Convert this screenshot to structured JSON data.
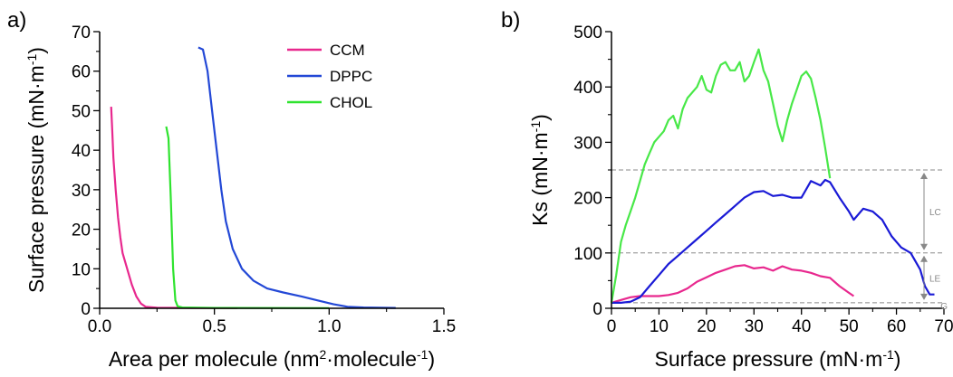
{
  "chart_data": [
    {
      "panel_label": "a)",
      "type": "line",
      "xlabel_html": [
        "Area per molecule (nm",
        "2",
        "·molecule",
        "-1",
        ")"
      ],
      "ylabel_html": [
        "Surface pressure (mN·m",
        "-1",
        ")"
      ],
      "xlim": [
        0,
        1.5
      ],
      "ylim": [
        0,
        70
      ],
      "xticks": [
        0,
        0.5,
        1.0,
        1.5
      ],
      "xtick_labels": [
        "0.0",
        "0.5",
        "1.0",
        "1.5"
      ],
      "yticks": [
        0,
        10,
        20,
        30,
        40,
        50,
        60,
        70
      ],
      "ytick_labels": [
        "0",
        "10",
        "20",
        "30",
        "40",
        "50",
        "60",
        "70"
      ],
      "grid": false,
      "legend_position": "top-right",
      "series": [
        {
          "name": "CCM",
          "color": "#e8288e",
          "points": [
            [
              0.05,
              51
            ],
            [
              0.055,
              45
            ],
            [
              0.06,
              38
            ],
            [
              0.07,
              30
            ],
            [
              0.08,
              23
            ],
            [
              0.09,
              18
            ],
            [
              0.1,
              14
            ],
            [
              0.12,
              10
            ],
            [
              0.14,
              6
            ],
            [
              0.16,
              3
            ],
            [
              0.18,
              1.2
            ],
            [
              0.2,
              0.4
            ],
            [
              0.25,
              0.15
            ],
            [
              0.4,
              0.1
            ],
            [
              0.6,
              0.05
            ]
          ]
        },
        {
          "name": "DPPC",
          "color": "#2348d6",
          "points": [
            [
              0.43,
              66
            ],
            [
              0.45,
              65.5
            ],
            [
              0.47,
              60
            ],
            [
              0.49,
              50
            ],
            [
              0.51,
              40
            ],
            [
              0.53,
              30
            ],
            [
              0.55,
              22
            ],
            [
              0.58,
              15
            ],
            [
              0.62,
              10
            ],
            [
              0.67,
              7
            ],
            [
              0.73,
              5
            ],
            [
              0.8,
              4
            ],
            [
              0.88,
              3
            ],
            [
              0.95,
              2
            ],
            [
              1.02,
              1
            ],
            [
              1.08,
              0.4
            ],
            [
              1.15,
              0.2
            ],
            [
              1.29,
              0.1
            ]
          ]
        },
        {
          "name": "CHOL",
          "color": "#2fe32f",
          "points": [
            [
              0.29,
              46
            ],
            [
              0.3,
              43
            ],
            [
              0.31,
              28
            ],
            [
              0.32,
              10
            ],
            [
              0.33,
              2
            ],
            [
              0.34,
              0.5
            ],
            [
              0.36,
              0.2
            ],
            [
              0.5,
              0.1
            ],
            [
              1.0,
              0.05
            ]
          ]
        }
      ]
    },
    {
      "panel_label": "b)",
      "type": "line",
      "xlabel_html": [
        "Surface pressure (mN·m",
        "-1",
        ")"
      ],
      "ylabel_html": [
        "Ks (mN·m",
        "-1",
        ")"
      ],
      "xlim": [
        0,
        70
      ],
      "ylim": [
        0,
        500
      ],
      "xticks": [
        0,
        10,
        20,
        30,
        40,
        50,
        60,
        70
      ],
      "xtick_labels": [
        "0",
        "10",
        "20",
        "30",
        "40",
        "50",
        "60",
        "70"
      ],
      "yticks": [
        0,
        100,
        200,
        300,
        400,
        500
      ],
      "ytick_labels": [
        "0",
        "100",
        "200",
        "300",
        "400",
        "500"
      ],
      "grid": false,
      "reference_lines": [
        250,
        100,
        10
      ],
      "regions": [
        {
          "label": "LC",
          "from": 100,
          "to": 250
        },
        {
          "label": "LE",
          "from": 10,
          "to": 100
        },
        {
          "label": "G",
          "from": 0,
          "to": 10
        }
      ],
      "series": [
        {
          "name": "CCM",
          "color": "#e8288e",
          "points": [
            [
              0,
              10
            ],
            [
              2,
              15
            ],
            [
              4,
              20
            ],
            [
              6,
              22
            ],
            [
              8,
              22
            ],
            [
              10,
              22
            ],
            [
              12,
              24
            ],
            [
              14,
              28
            ],
            [
              16,
              36
            ],
            [
              18,
              48
            ],
            [
              20,
              56
            ],
            [
              22,
              64
            ],
            [
              24,
              70
            ],
            [
              26,
              76
            ],
            [
              28,
              78
            ],
            [
              30,
              72
            ],
            [
              32,
              74
            ],
            [
              34,
              68
            ],
            [
              36,
              76
            ],
            [
              38,
              70
            ],
            [
              40,
              68
            ],
            [
              42,
              64
            ],
            [
              44,
              58
            ],
            [
              46,
              55
            ],
            [
              48,
              40
            ],
            [
              50,
              28
            ],
            [
              51,
              22
            ]
          ]
        },
        {
          "name": "DPPC",
          "color": "#1a1ad6",
          "points": [
            [
              0,
              10
            ],
            [
              2,
              10
            ],
            [
              4,
              12
            ],
            [
              6,
              20
            ],
            [
              8,
              40
            ],
            [
              10,
              60
            ],
            [
              12,
              80
            ],
            [
              14,
              95
            ],
            [
              16,
              110
            ],
            [
              18,
              125
            ],
            [
              20,
              140
            ],
            [
              22,
              155
            ],
            [
              24,
              170
            ],
            [
              26,
              185
            ],
            [
              28,
              200
            ],
            [
              30,
              210
            ],
            [
              32,
              212
            ],
            [
              34,
              203
            ],
            [
              36,
              205
            ],
            [
              38,
              200
            ],
            [
              40,
              200
            ],
            [
              42,
              230
            ],
            [
              44,
              222
            ],
            [
              45,
              232
            ],
            [
              46,
              228
            ],
            [
              48,
              200
            ],
            [
              50,
              175
            ],
            [
              51,
              160
            ],
            [
              53,
              180
            ],
            [
              55,
              175
            ],
            [
              57,
              160
            ],
            [
              59,
              130
            ],
            [
              61,
              110
            ],
            [
              63,
              100
            ],
            [
              65,
              70
            ],
            [
              66,
              40
            ],
            [
              67,
              25
            ],
            [
              68,
              25
            ]
          ]
        },
        {
          "name": "CHOL",
          "color": "#48e848",
          "points": [
            [
              0,
              10
            ],
            [
              1,
              60
            ],
            [
              2,
              120
            ],
            [
              3,
              150
            ],
            [
              4,
              175
            ],
            [
              5,
              200
            ],
            [
              6,
              230
            ],
            [
              7,
              260
            ],
            [
              8,
              280
            ],
            [
              9,
              300
            ],
            [
              10,
              310
            ],
            [
              11,
              320
            ],
            [
              12,
              340
            ],
            [
              13,
              348
            ],
            [
              14,
              325
            ],
            [
              15,
              360
            ],
            [
              16,
              380
            ],
            [
              18,
              400
            ],
            [
              19,
              420
            ],
            [
              20,
              395
            ],
            [
              21,
              390
            ],
            [
              22,
              420
            ],
            [
              23,
              440
            ],
            [
              24,
              445
            ],
            [
              25,
              430
            ],
            [
              26,
              430
            ],
            [
              27,
              445
            ],
            [
              28,
              410
            ],
            [
              29,
              420
            ],
            [
              30,
              445
            ],
            [
              31,
              468
            ],
            [
              32,
              430
            ],
            [
              33,
              410
            ],
            [
              34,
              370
            ],
            [
              35,
              330
            ],
            [
              36,
              302
            ],
            [
              37,
              340
            ],
            [
              38,
              370
            ],
            [
              39,
              395
            ],
            [
              40,
              420
            ],
            [
              41,
              428
            ],
            [
              42,
              415
            ],
            [
              43,
              380
            ],
            [
              44,
              340
            ],
            [
              45,
              290
            ],
            [
              46,
              235
            ]
          ]
        }
      ]
    }
  ]
}
